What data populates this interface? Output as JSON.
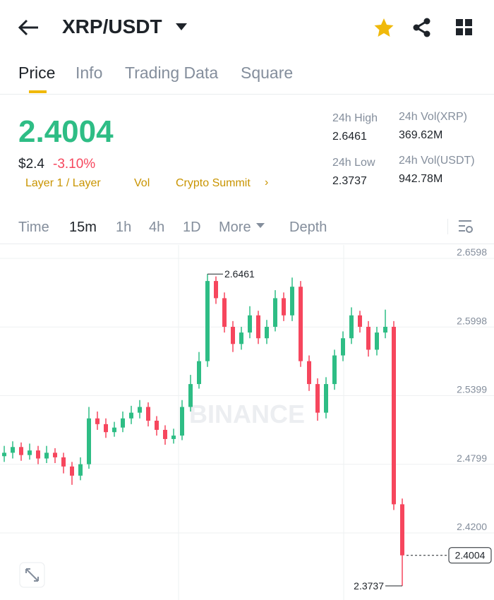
{
  "header": {
    "pair": "XRP/USDT",
    "tabs": [
      "Price",
      "Info",
      "Trading Data",
      "Square"
    ]
  },
  "summary": {
    "price": "2.4004",
    "usd": "$2.4",
    "change": "-3.10%",
    "tags": [
      "Layer 1 / Layer",
      "Vol",
      "Crypto Summit"
    ],
    "stats": [
      {
        "label": "24h High",
        "value": "2.6461"
      },
      {
        "label": "24h Vol(XRP)",
        "value": "369.62M"
      },
      {
        "label": "24h Low",
        "value": "2.3737"
      },
      {
        "label": "24h Vol(USDT)",
        "value": "942.78M"
      }
    ]
  },
  "intervals": [
    "Time",
    "15m",
    "1h",
    "4h",
    "1D",
    "More",
    "Depth"
  ],
  "chart_data": {
    "type": "candlestick",
    "watermark": "BINANCE",
    "up_color": "#2ebd85",
    "down_color": "#f6465d",
    "ylim": [
      2.3614,
      2.6715
    ],
    "yticks": [
      2.6598,
      2.5998,
      2.5399,
      2.4799,
      {
        "value": 2.42,
        "label": "2.4200"
      }
    ],
    "candles": [
      [
        2.487,
        2.496,
        2.482,
        2.49
      ],
      [
        2.49,
        2.5,
        2.485,
        2.495
      ],
      [
        2.495,
        2.499,
        2.483,
        2.488
      ],
      [
        2.488,
        2.498,
        2.484,
        2.492
      ],
      [
        2.492,
        2.496,
        2.48,
        2.485
      ],
      [
        2.485,
        2.496,
        2.481,
        2.49
      ],
      [
        2.49,
        2.494,
        2.481,
        2.486
      ],
      [
        2.486,
        2.49,
        2.472,
        2.478
      ],
      [
        2.478,
        2.482,
        2.462,
        2.47
      ],
      [
        2.47,
        2.486,
        2.466,
        2.48
      ],
      [
        2.48,
        2.53,
        2.476,
        2.52
      ],
      [
        2.52,
        2.526,
        2.51,
        2.515
      ],
      [
        2.515,
        2.52,
        2.503,
        2.508
      ],
      [
        2.508,
        2.517,
        2.504,
        2.512
      ],
      [
        2.512,
        2.526,
        2.508,
        2.52
      ],
      [
        2.52,
        2.531,
        2.515,
        2.525
      ],
      [
        2.525,
        2.536,
        2.52,
        2.53
      ],
      [
        2.53,
        2.534,
        2.513,
        2.518
      ],
      [
        2.518,
        2.522,
        2.505,
        2.51
      ],
      [
        2.51,
        2.514,
        2.497,
        2.502
      ],
      [
        2.502,
        2.511,
        2.498,
        2.505
      ],
      [
        2.505,
        2.536,
        2.501,
        2.53
      ],
      [
        2.53,
        2.558,
        2.526,
        2.55
      ],
      [
        2.55,
        2.578,
        2.546,
        2.57
      ],
      [
        2.57,
        2.6461,
        2.565,
        2.64
      ],
      [
        2.64,
        2.644,
        2.62,
        2.625
      ],
      [
        2.625,
        2.63,
        2.595,
        2.6
      ],
      [
        2.6,
        2.605,
        2.578,
        2.585
      ],
      [
        2.585,
        2.6,
        2.58,
        2.595
      ],
      [
        2.595,
        2.618,
        2.59,
        2.61
      ],
      [
        2.61,
        2.614,
        2.585,
        2.59
      ],
      [
        2.59,
        2.606,
        2.585,
        2.6
      ],
      [
        2.6,
        2.632,
        2.596,
        2.625
      ],
      [
        2.625,
        2.63,
        2.605,
        2.61
      ],
      [
        2.61,
        2.643,
        2.605,
        2.635
      ],
      [
        2.635,
        2.64,
        2.565,
        2.57
      ],
      [
        2.57,
        2.575,
        2.544,
        2.55
      ],
      [
        2.55,
        2.555,
        2.518,
        2.525
      ],
      [
        2.525,
        2.556,
        2.52,
        2.55
      ],
      [
        2.55,
        2.58,
        2.545,
        2.575
      ],
      [
        2.575,
        2.596,
        2.57,
        2.59
      ],
      [
        2.59,
        2.617,
        2.585,
        2.61
      ],
      [
        2.61,
        2.614,
        2.595,
        2.6
      ],
      [
        2.6,
        2.605,
        2.574,
        2.58
      ],
      [
        2.58,
        2.6,
        2.575,
        2.595
      ],
      [
        2.595,
        2.615,
        2.59,
        2.6
      ],
      [
        2.6,
        2.605,
        2.44,
        2.445
      ],
      [
        2.445,
        2.45,
        2.3737,
        2.4004
      ]
    ]
  }
}
